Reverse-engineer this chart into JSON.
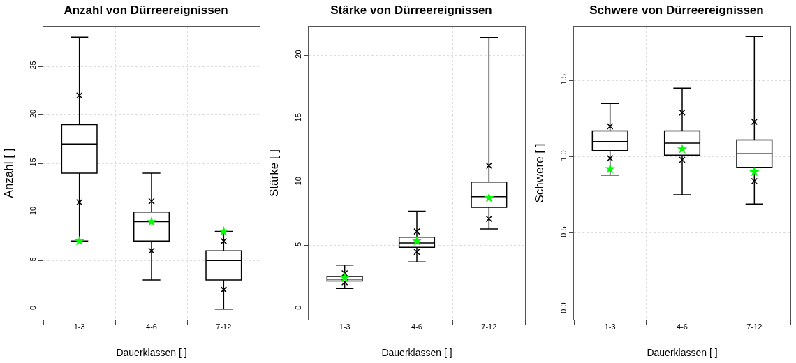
{
  "chart_data": [
    {
      "type": "box",
      "title": "Anzahl von Dürreereignissen",
      "xlabel": "Dauerklassen [ ]",
      "ylabel": "Anzahl [ ]",
      "categories": [
        "1-3",
        "4-6",
        "7-12"
      ],
      "color": "#000000",
      "boxes": [
        {
          "low": 7,
          "q1": 14,
          "median": 17,
          "q3": 19,
          "high": 28
        },
        {
          "low": 3,
          "q1": 7,
          "median": 9,
          "q3": 10,
          "high": 14
        },
        {
          "low": 0,
          "q1": 3,
          "median": 5,
          "q3": 6,
          "high": 8
        }
      ],
      "series": [
        {
          "type": "scatter",
          "color": "#000000",
          "marker": "cross",
          "x": [
            "1-3",
            "1-3",
            "4-6",
            "4-6",
            "7-12",
            "7-12"
          ],
          "values": [
            22,
            11,
            11.1,
            6,
            7,
            2
          ]
        },
        {
          "type": "scatter",
          "color": "#00ff00",
          "marker": "star",
          "x": [
            "1-3",
            "4-6",
            "7-12"
          ],
          "values": [
            7,
            9,
            8
          ]
        }
      ],
      "ylim": [
        -1.1,
        29.1
      ],
      "yticks": [
        0,
        5,
        10,
        15,
        20,
        25
      ],
      "grid": true
    },
    {
      "type": "box",
      "title": "Stärke von Dürreereignissen",
      "xlabel": "Dauerklassen [ ]",
      "ylabel": "Stärke [ ]",
      "categories": [
        "1-3",
        "4-6",
        "7-12"
      ],
      "color": "#000000",
      "boxes": [
        {
          "low": 1.6,
          "q1": 2.2,
          "median": 2.35,
          "q3": 2.55,
          "high": 3.45
        },
        {
          "low": 3.7,
          "q1": 4.85,
          "median": 5.2,
          "q3": 5.65,
          "high": 7.7
        },
        {
          "low": 6.3,
          "q1": 8.0,
          "median": 8.85,
          "q3": 10.0,
          "high": 21.4
        }
      ],
      "series": [
        {
          "type": "scatter",
          "color": "#000000",
          "marker": "cross",
          "x": [
            "1-3",
            "1-3",
            "4-6",
            "4-6",
            "7-12",
            "7-12"
          ],
          "values": [
            2.8,
            2.1,
            6.1,
            4.5,
            11.3,
            7.1
          ]
        },
        {
          "type": "scatter",
          "color": "#00ff00",
          "marker": "star",
          "x": [
            "1-3",
            "4-6",
            "7-12"
          ],
          "values": [
            2.45,
            5.35,
            8.75
          ]
        }
      ],
      "ylim": [
        -0.86,
        22.27
      ],
      "yticks": [
        0,
        5,
        10,
        15,
        20
      ],
      "grid": true
    },
    {
      "type": "box",
      "title": "Schwere von Dürreereignissen",
      "xlabel": "Dauerklassen [ ]",
      "ylabel": "Schwere [ ]",
      "categories": [
        "1-3",
        "4-6",
        "7-12"
      ],
      "color": "#000000",
      "boxes": [
        {
          "low": 0.88,
          "q1": 1.04,
          "median": 1.1,
          "q3": 1.17,
          "high": 1.35
        },
        {
          "low": 0.75,
          "q1": 1.01,
          "median": 1.09,
          "q3": 1.17,
          "high": 1.45
        },
        {
          "low": 0.69,
          "q1": 0.93,
          "median": 1.02,
          "q3": 1.11,
          "high": 1.79
        }
      ],
      "series": [
        {
          "type": "scatter",
          "color": "#000000",
          "marker": "cross",
          "x": [
            "1-3",
            "1-3",
            "4-6",
            "4-6",
            "7-12",
            "7-12"
          ],
          "values": [
            1.2,
            0.99,
            1.29,
            0.98,
            1.23,
            0.84
          ]
        },
        {
          "type": "scatter",
          "color": "#00ff00",
          "marker": "star",
          "x": [
            "1-3",
            "4-6",
            "7-12"
          ],
          "values": [
            0.92,
            1.05,
            0.9
          ]
        }
      ],
      "ylim": [
        -0.07,
        1.855
      ],
      "yticks": [
        {
          "value": 0,
          "label": "0.0"
        },
        {
          "value": 0.5,
          "label": "0.5"
        },
        {
          "value": 1,
          "label": "1.0"
        },
        {
          "value": 1.5,
          "label": "1.5"
        }
      ],
      "grid": true
    }
  ]
}
